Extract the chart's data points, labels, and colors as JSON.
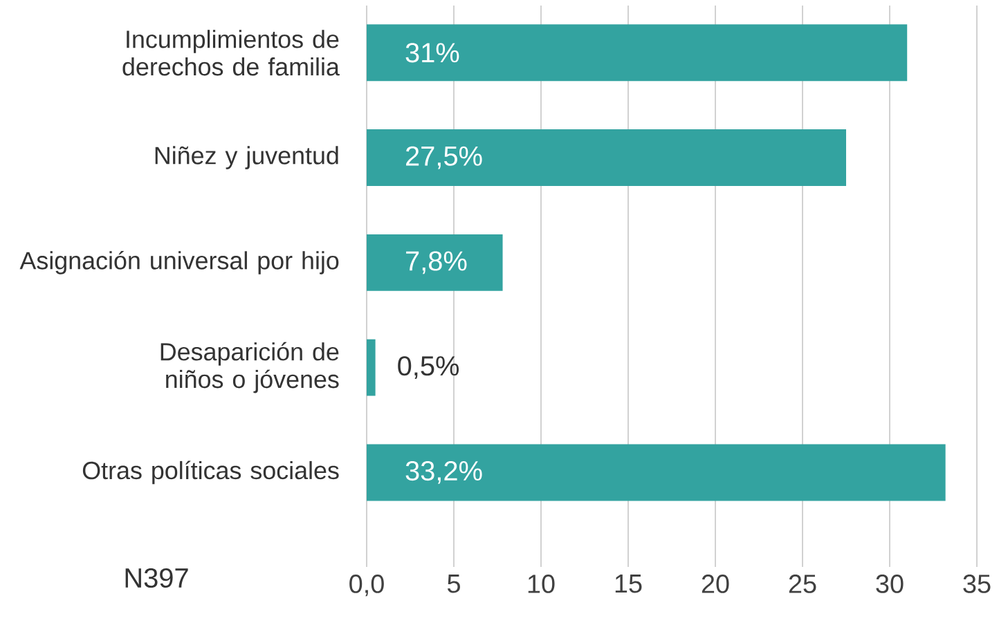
{
  "chart_data": {
    "type": "bar",
    "orientation": "horizontal",
    "categories": [
      "Incumplimientos de derechos de familia",
      "Niñez y juventud",
      "Asignación universal por hijo",
      "Desaparición de niños o jóvenes",
      "Otras políticas sociales"
    ],
    "values": [
      31,
      27.5,
      7.8,
      0.5,
      33.2
    ],
    "value_labels": [
      "31%",
      "27,5%",
      "7,8%",
      "0,5%",
      "33,2%"
    ],
    "color": "#33a3a0",
    "xlim": [
      0,
      35
    ],
    "xticks": [
      {
        "value": 0,
        "label": "0,0"
      },
      5,
      10,
      15,
      20,
      25,
      30,
      35
    ],
    "grid": "x",
    "annotations": [
      "N397"
    ]
  }
}
